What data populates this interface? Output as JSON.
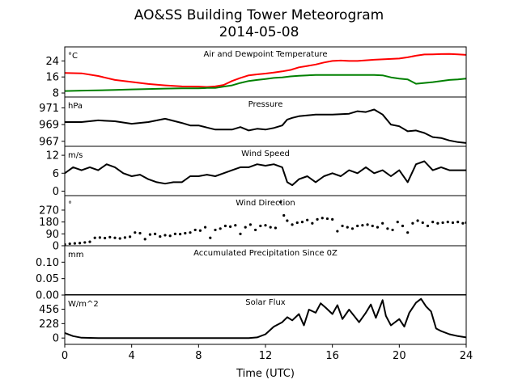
{
  "figure": {
    "title_line1": "AO&SS Building Tower Meteorogram",
    "title_line2": "2014-05-08",
    "xlabel": "Time (UTC)",
    "xticks": [
      0,
      4,
      8,
      12,
      16,
      20,
      24
    ],
    "xlim": [
      0,
      24
    ]
  },
  "chart_data": [
    {
      "type": "line",
      "title": "Air and Dewpoint Temperature",
      "unit": "°C",
      "ylim": [
        6,
        31
      ],
      "yticks": [
        8,
        16,
        24
      ],
      "series": [
        {
          "color": "#ff0000",
          "x": [
            0,
            1,
            2,
            3,
            4,
            5,
            6,
            7,
            8,
            8.5,
            9,
            9.5,
            10,
            10.5,
            11,
            11.5,
            12,
            12.5,
            13,
            13.5,
            14,
            14.5,
            15,
            15.5,
            16,
            16.5,
            17,
            17.5,
            18,
            18.5,
            19,
            19.5,
            20,
            20.5,
            21,
            21.5,
            22,
            22.5,
            23,
            23.5,
            24
          ],
          "y": [
            18,
            17.8,
            16.5,
            14.5,
            13.5,
            12.5,
            11.8,
            11.3,
            11.2,
            11,
            11.3,
            12,
            14,
            15.5,
            16.8,
            17.3,
            17.7,
            18.2,
            18.8,
            19.5,
            20.8,
            21.5,
            22.2,
            23.2,
            24,
            24.2,
            24,
            24,
            24.3,
            24.6,
            24.8,
            25,
            25.2,
            25.8,
            26.6,
            27.2,
            27.3,
            27.4,
            27.5,
            27.3,
            27
          ]
        },
        {
          "color": "#008000",
          "x": [
            0,
            1,
            2,
            3,
            4,
            5,
            6,
            7,
            8,
            8.5,
            9,
            9.5,
            10,
            10.5,
            11,
            11.5,
            12,
            12.5,
            13,
            13.5,
            14,
            14.5,
            15,
            15.5,
            16,
            16.5,
            17,
            17.5,
            18,
            18.5,
            19,
            19.5,
            20,
            20.5,
            21,
            21.5,
            22,
            22.5,
            23,
            23.5,
            24
          ],
          "y": [
            9,
            9.2,
            9.3,
            9.5,
            9.8,
            10,
            10.2,
            10.3,
            10.3,
            10.5,
            10.5,
            11.2,
            11.8,
            13,
            14,
            14.5,
            15,
            15.5,
            15.8,
            16.3,
            16.6,
            16.8,
            17,
            17,
            17,
            17,
            17,
            17,
            17,
            17,
            16.8,
            15.8,
            15.2,
            14.8,
            12.6,
            13,
            13.4,
            14,
            14.5,
            14.8,
            15.2
          ]
        }
      ]
    },
    {
      "type": "line",
      "title": "Pressure",
      "unit": "hPa",
      "ylim": [
        966.4,
        972.3
      ],
      "yticks": [
        967,
        969,
        971
      ],
      "series": [
        {
          "color": "#000000",
          "x": [
            0,
            1,
            2,
            3,
            4,
            5,
            6,
            7,
            7.5,
            8,
            9,
            10,
            10.5,
            11,
            11.5,
            12,
            12.5,
            13,
            13.3,
            13.6,
            14,
            15,
            16,
            17,
            17.5,
            18,
            18.5,
            19,
            19.5,
            20,
            20.5,
            21,
            21.5,
            22,
            22.5,
            23,
            23.5,
            24
          ],
          "y": [
            969.3,
            969.3,
            969.5,
            969.4,
            969.1,
            969.3,
            969.7,
            969.2,
            968.9,
            968.9,
            968.4,
            968.4,
            968.7,
            968.3,
            968.5,
            968.4,
            968.6,
            968.9,
            969.6,
            969.8,
            970.0,
            970.2,
            970.2,
            970.3,
            970.6,
            970.5,
            970.8,
            970.2,
            969.0,
            968.8,
            968.2,
            968.3,
            968.0,
            967.5,
            967.4,
            967.1,
            966.9,
            966.8
          ]
        }
      ]
    },
    {
      "type": "line",
      "title": "Wind Speed",
      "unit": "m/s",
      "ylim": [
        -1.5,
        15
      ],
      "yticks": [
        0,
        6,
        12
      ],
      "series": [
        {
          "color": "#000000",
          "x": [
            0,
            0.5,
            1,
            1.5,
            2,
            2.5,
            3,
            3.5,
            4,
            4.5,
            5,
            5.5,
            6,
            6.5,
            7,
            7.5,
            8,
            8.5,
            9,
            9.5,
            10,
            10.5,
            11,
            11.5,
            12,
            12.5,
            13,
            13.3,
            13.6,
            14,
            14.5,
            15,
            15.5,
            16,
            16.5,
            17,
            17.5,
            18,
            18.5,
            19,
            19.5,
            20,
            20.5,
            21,
            21.5,
            22,
            22.5,
            23,
            23.5,
            24
          ],
          "y": [
            6,
            8,
            7,
            8,
            7,
            9,
            8,
            6,
            5,
            5.5,
            4,
            3,
            2.5,
            3,
            3,
            5,
            5,
            5.5,
            5,
            6,
            7,
            8,
            8,
            9,
            8.5,
            9,
            8,
            3,
            2,
            4,
            5,
            3,
            5,
            6,
            5,
            7,
            6,
            8,
            6,
            7,
            5,
            7,
            3,
            9,
            10,
            7,
            8,
            7,
            7,
            7
          ]
        }
      ]
    },
    {
      "type": "scatter",
      "title": "Wind Direction",
      "unit": "°",
      "ylim": [
        0,
        380
      ],
      "yticks": [
        0,
        90,
        180,
        270
      ],
      "series": [
        {
          "color": "#000000",
          "x": [
            0,
            0.3,
            0.6,
            0.9,
            1.2,
            1.5,
            1.8,
            2.1,
            2.4,
            2.7,
            3,
            3.3,
            3.6,
            3.9,
            4.2,
            4.5,
            4.8,
            5.1,
            5.4,
            5.7,
            6,
            6.3,
            6.6,
            6.9,
            7.2,
            7.5,
            7.8,
            8.1,
            8.4,
            8.7,
            9,
            9.3,
            9.6,
            9.9,
            10.2,
            10.5,
            10.8,
            11.1,
            11.4,
            11.7,
            12,
            12.3,
            12.6,
            12.9,
            13.1,
            13.3,
            13.6,
            13.9,
            14.2,
            14.5,
            14.8,
            15.1,
            15.4,
            15.7,
            16,
            16.3,
            16.6,
            16.9,
            17.2,
            17.5,
            17.8,
            18.1,
            18.4,
            18.7,
            19,
            19.3,
            19.6,
            19.9,
            20.2,
            20.5,
            20.8,
            21.1,
            21.4,
            21.7,
            22,
            22.3,
            22.6,
            22.9,
            23.2,
            23.5,
            23.8,
            24
          ],
          "y": [
            10,
            15,
            18,
            20,
            25,
            30,
            60,
            62,
            58,
            65,
            60,
            55,
            62,
            68,
            100,
            95,
            50,
            85,
            90,
            70,
            80,
            75,
            90,
            88,
            95,
            100,
            120,
            115,
            140,
            60,
            120,
            130,
            150,
            145,
            155,
            90,
            140,
            160,
            120,
            150,
            155,
            140,
            135,
            330,
            230,
            190,
            160,
            175,
            180,
            195,
            170,
            200,
            210,
            205,
            200,
            110,
            150,
            140,
            130,
            150,
            155,
            160,
            150,
            140,
            170,
            130,
            120,
            180,
            150,
            100,
            170,
            190,
            175,
            150,
            180,
            170,
            175,
            180,
            175,
            180,
            170,
            175
          ]
        }
      ]
    },
    {
      "type": "line",
      "title": "Accumulated Precipitation Since 0Z",
      "unit": "mm",
      "ylim": [
        0,
        0.15
      ],
      "yticks": [
        0.0,
        0.05,
        0.1
      ],
      "ytick_labels": [
        "0.00",
        "0.05",
        "0.10"
      ],
      "series": [
        {
          "color": "#000000",
          "x": [
            0,
            24
          ],
          "y": [
            0,
            0
          ]
        }
      ]
    },
    {
      "type": "line",
      "title": "Solar Flux",
      "unit": "W/m^2",
      "ylim": [
        -100,
        680
      ],
      "yticks": [
        0,
        228,
        456
      ],
      "series": [
        {
          "color": "#000000",
          "x": [
            0,
            0.5,
            1,
            2,
            4,
            6,
            8,
            10,
            11,
            11.5,
            12,
            12.5,
            13,
            13.3,
            13.6,
            14,
            14.3,
            14.6,
            15,
            15.3,
            15.6,
            16,
            16.3,
            16.6,
            17,
            17.3,
            17.6,
            18,
            18.3,
            18.6,
            19,
            19.2,
            19.5,
            20,
            20.3,
            20.6,
            21,
            21.3,
            21.6,
            21.9,
            22.2,
            22.5,
            23,
            23.5,
            24
          ],
          "y": [
            80,
            30,
            5,
            0,
            0,
            0,
            0,
            0,
            0,
            10,
            60,
            180,
            250,
            330,
            280,
            380,
            200,
            450,
            400,
            550,
            480,
            380,
            520,
            300,
            450,
            350,
            250,
            400,
            530,
            320,
            600,
            350,
            200,
            300,
            180,
            400,
            560,
            620,
            500,
            420,
            150,
            110,
            60,
            30,
            10
          ]
        }
      ]
    }
  ]
}
